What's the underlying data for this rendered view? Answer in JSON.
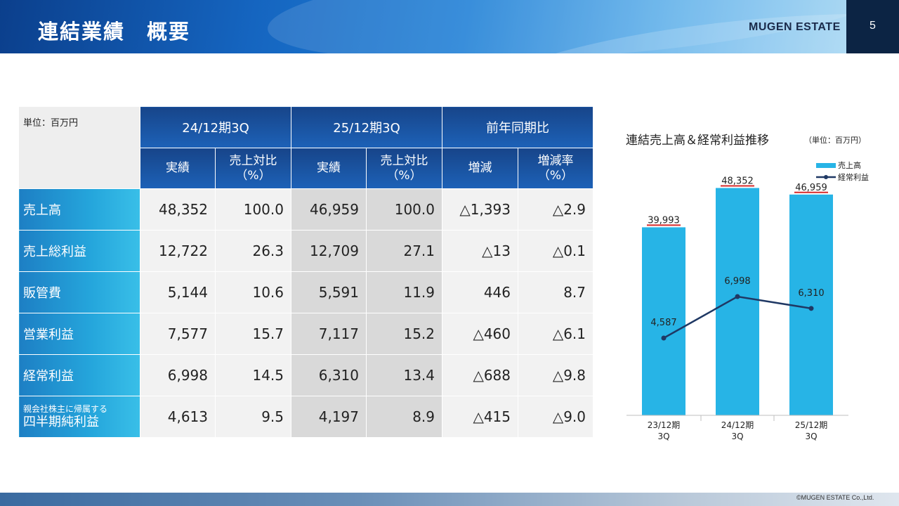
{
  "header": {
    "title": "連結業績　概要",
    "brand": "MUGEN ESTATE",
    "page_number": "5"
  },
  "table": {
    "unit": "単位：百万円",
    "groups": [
      "24/12期3Q",
      "25/12期3Q",
      "前年同期比"
    ],
    "subheaders": [
      "実績",
      "売上対比\n（%）",
      "実績",
      "売上対比\n（%）",
      "増減",
      "増減率\n（%）"
    ],
    "rows": [
      {
        "label_small": "",
        "label": "売上高",
        "values": [
          "48,352",
          "100.0",
          "46,959",
          "100.0",
          "△1,393",
          "△2.9"
        ]
      },
      {
        "label_small": "",
        "label": "売上総利益",
        "values": [
          "12,722",
          "26.3",
          "12,709",
          "27.1",
          "△13",
          "△0.1"
        ]
      },
      {
        "label_small": "",
        "label": "販管費",
        "values": [
          "5,144",
          "10.6",
          "5,591",
          "11.9",
          "446",
          "8.7"
        ]
      },
      {
        "label_small": "",
        "label": "営業利益",
        "values": [
          "7,577",
          "15.7",
          "7,117",
          "15.2",
          "△460",
          "△6.1"
        ]
      },
      {
        "label_small": "",
        "label": "経常利益",
        "values": [
          "6,998",
          "14.5",
          "6,310",
          "13.4",
          "△688",
          "△9.8"
        ]
      },
      {
        "label_small": "親会社株主に帰属する",
        "label": "四半期純利益",
        "values": [
          "4,613",
          "9.5",
          "4,197",
          "8.9",
          "△415",
          "△9.0"
        ]
      }
    ]
  },
  "chart": {
    "title": "連結売上高＆経常利益推移",
    "unit": "（単位：百万円）",
    "bar_color": "#27b4e6",
    "line_color": "#1f3864",
    "underline_color": "#d62828"
  },
  "chart_data": {
    "type": "bar",
    "categories": [
      "23/12期\n3Q",
      "24/12期\n3Q",
      "25/12期\n3Q"
    ],
    "series": [
      {
        "name": "売上高",
        "type": "bar",
        "values": [
          39993,
          48352,
          46959
        ],
        "labels": [
          "39,993",
          "48,352",
          "46,959"
        ]
      },
      {
        "name": "経常利益",
        "type": "line",
        "values": [
          4587,
          6998,
          6310
        ],
        "labels": [
          "4,587",
          "6,998",
          "6,310"
        ]
      }
    ],
    "legend_position": "top-right",
    "grid": false
  },
  "footer": {
    "copyright": "©MUGEN ESTATE Co.,Ltd."
  }
}
